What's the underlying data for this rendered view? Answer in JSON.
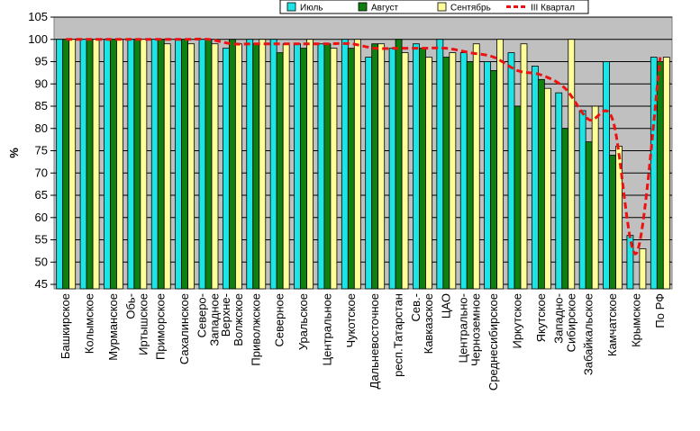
{
  "chart_data": {
    "type": "bar",
    "title": "",
    "ylabel": "%",
    "xlabel": "",
    "ylim": [
      44,
      105
    ],
    "yticks": [
      45,
      50,
      55,
      60,
      65,
      70,
      75,
      80,
      85,
      90,
      95,
      100,
      105
    ],
    "grid": true,
    "legend_position": "top-right",
    "categories": [
      "Башкирское",
      "Колымское",
      "Мурманское",
      "Обь-Иртышское",
      "Приморское",
      "Сахалинское",
      "Северо-Западное",
      "Верхне-Волжское",
      "Приволжское",
      "Северное",
      "Уральское",
      "Центральное",
      "Чукотское",
      "Дальневосточное",
      "респ.Татарстан",
      "Сев.-Кавказское",
      "ЦАО",
      "Центрально-Черноземное",
      "Среднесибирское",
      "Иркутское",
      "Якутское",
      "Западно-Сибирское",
      "Забайкальское",
      "Камчатское",
      "Крымское",
      "По РФ"
    ],
    "series": [
      {
        "name": "Июль",
        "color": "#1ee5e5",
        "values": [
          100,
          100,
          100,
          100,
          100,
          100,
          100,
          98,
          100,
          100,
          99,
          99,
          100,
          96,
          98,
          99,
          100,
          97,
          95,
          97,
          94,
          88,
          84,
          95,
          56,
          96
        ]
      },
      {
        "name": "Август",
        "color": "#0f7f0f",
        "values": [
          100,
          100,
          100,
          100,
          100,
          100,
          100,
          100,
          99,
          97,
          98,
          99,
          98,
          99,
          100,
          98,
          96,
          95,
          93,
          85,
          91,
          80,
          77,
          74,
          44,
          95
        ]
      },
      {
        "name": "Сентябрь",
        "color": "#ffff99",
        "values": [
          100,
          100,
          100,
          100,
          99,
          99,
          99,
          99,
          100,
          99,
          100,
          98,
          100,
          99,
          97,
          96,
          97,
          99,
          100,
          99,
          89,
          100,
          85,
          76,
          53,
          96
        ]
      },
      {
        "name": "III Квартал",
        "type": "line",
        "color": "#ee1111",
        "values": [
          100,
          100,
          100,
          100,
          100,
          100,
          100,
          99,
          99,
          99,
          99,
          99,
          99,
          98,
          98,
          98,
          98,
          97,
          96,
          93,
          92,
          89,
          82,
          82,
          52,
          96
        ]
      }
    ]
  }
}
